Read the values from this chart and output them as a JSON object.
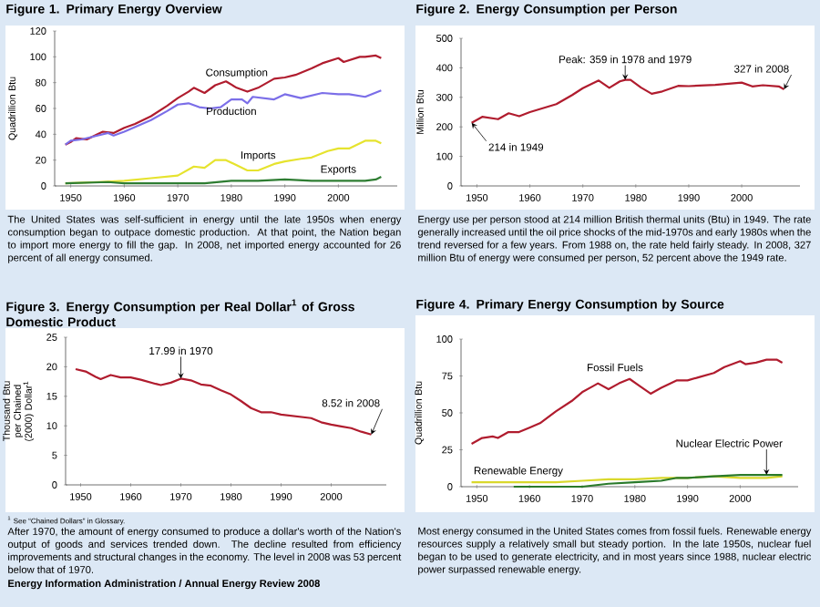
{
  "chart_data": [
    {
      "type": "line",
      "title": "Figure 1.  Primary Energy Overview",
      "ylabel": "Quadrillion Btu",
      "xlim": [
        1947,
        2011
      ],
      "xticks": [
        1950,
        1960,
        1970,
        1980,
        1990,
        2000
      ],
      "ylim": [
        0,
        120
      ],
      "yticks": [
        0,
        20,
        40,
        60,
        80,
        100,
        120
      ],
      "series": [
        {
          "name": "Consumption",
          "color": "#b01c2e",
          "x": [
            1949,
            1950,
            1951,
            1953,
            1955,
            1956,
            1958,
            1960,
            1962,
            1965,
            1968,
            1970,
            1972,
            1973,
            1975,
            1977,
            1979,
            1981,
            1983,
            1985,
            1988,
            1990,
            1992,
            1995,
            1997,
            2000,
            2001,
            2004,
            2005,
            2007,
            2008
          ],
          "values": [
            32,
            34,
            37,
            36,
            40,
            42,
            41,
            45,
            48,
            54,
            62,
            68,
            73,
            76,
            72,
            78,
            81,
            76,
            73,
            76,
            83,
            84,
            86,
            91,
            95,
            99,
            96,
            100,
            100,
            101,
            99
          ]
        },
        {
          "name": "Production",
          "color": "#7b6ee8",
          "x": [
            1949,
            1950,
            1952,
            1955,
            1957,
            1958,
            1960,
            1965,
            1968,
            1970,
            1972,
            1974,
            1976,
            1978,
            1980,
            1982,
            1983,
            1984,
            1988,
            1990,
            1993,
            1997,
            2000,
            2002,
            2005,
            2008
          ],
          "values": [
            32,
            35,
            36,
            39,
            41,
            39,
            42,
            51,
            58,
            63,
            64,
            61,
            60,
            61,
            67,
            67,
            64,
            69,
            67,
            71,
            68,
            72,
            71,
            71,
            69,
            74
          ]
        },
        {
          "name": "Imports",
          "color": "#e6e32e",
          "x": [
            1949,
            1955,
            1960,
            1965,
            1970,
            1973,
            1975,
            1977,
            1979,
            1981,
            1983,
            1985,
            1988,
            1990,
            1993,
            1995,
            1998,
            2000,
            2002,
            2005,
            2007,
            2008
          ],
          "values": [
            2,
            3,
            4,
            6,
            8,
            15,
            14,
            20,
            20,
            16,
            12,
            12,
            17,
            19,
            21,
            22,
            27,
            29,
            29,
            35,
            35,
            33
          ]
        },
        {
          "name": "Exports",
          "color": "#2e7d32",
          "x": [
            1949,
            1957,
            1960,
            1965,
            1970,
            1975,
            1980,
            1981,
            1985,
            1990,
            1995,
            2000,
            2005,
            2007,
            2008
          ],
          "values": [
            2,
            3,
            2,
            2,
            2,
            2,
            4,
            4,
            4,
            5,
            4,
            4,
            4,
            5,
            7
          ]
        }
      ],
      "annotations": [
        "The United States was self-sufficient in energy until the late 1950s when energy consumption began to outpace domestic production.  At that point, the Nation began to import more energy to fill the gap. In 2008, net imported energy accounted for 26 percent of all energy consumed."
      ]
    },
    {
      "type": "line",
      "title": "Figure 2.  Energy Consumption per Person",
      "ylabel": "Million Btu",
      "xlim": [
        1947,
        2011
      ],
      "xticks": [
        1950,
        1960,
        1970,
        1980,
        1990,
        2000
      ],
      "ylim": [
        0,
        500
      ],
      "yticks": [
        0,
        100,
        200,
        300,
        400,
        500
      ],
      "series": [
        {
          "color": "#b01c2e",
          "x": [
            1949,
            1951,
            1954,
            1956,
            1958,
            1960,
            1965,
            1968,
            1970,
            1973,
            1975,
            1977,
            1978,
            1979,
            1981,
            1983,
            1985,
            1988,
            1990,
            1995,
            2000,
            2002,
            2004,
            2007,
            2008
          ],
          "values": [
            214,
            234,
            226,
            246,
            236,
            250,
            277,
            308,
            331,
            357,
            332,
            354,
            359,
            359,
            333,
            312,
            320,
            339,
            338,
            342,
            350,
            337,
            341,
            337,
            327
          ]
        }
      ],
      "annotations": [
        {
          "text": "214 in 1949",
          "x": 1949,
          "y": 214
        },
        {
          "text": "Peak:  359 in 1978 and 1979",
          "x": 1978,
          "y": 359
        },
        {
          "text": "327 in 2008",
          "x": 2008,
          "y": 327
        },
        "Energy use per person stood at 214 million British thermal units (Btu) in 1949. The rate generally increased until the oil price shocks of the mid-1970s and early 1980s when the trend reversed for a few years. From 1988 on, the rate held fairly steady.  In 2008, 327 million Btu of energy were consumed per person, 52 percent above the 1949 rate."
      ]
    },
    {
      "type": "line",
      "title": "Figure 3.  Energy Consumption per Real Dollar$^{1}$ of Gross Domestic Product",
      "ylabel": "Thousand Btu per Chained (2000) Dollar$^{1}$",
      "xlim": [
        1947,
        2011
      ],
      "xticks": [
        1950,
        1960,
        1970,
        1980,
        1990,
        2000
      ],
      "ylim": [
        0,
        25
      ],
      "yticks": [
        0,
        5,
        10,
        15,
        20,
        25
      ],
      "series": [
        {
          "color": "#b01c2e",
          "x": [
            1949,
            1951,
            1953,
            1954,
            1956,
            1958,
            1960,
            1962,
            1965,
            1966,
            1968,
            1970,
            1972,
            1974,
            1976,
            1978,
            1980,
            1982,
            1984,
            1986,
            1988,
            1990,
            1993,
            1996,
            1998,
            2000,
            2002,
            2004,
            2006,
            2008
          ],
          "values": [
            19.6,
            19.2,
            18.3,
            17.9,
            18.6,
            18.2,
            18.2,
            17.8,
            17.1,
            16.9,
            17.3,
            17.99,
            17.7,
            17.0,
            16.8,
            16.0,
            15.3,
            14.2,
            13.0,
            12.3,
            12.3,
            11.9,
            11.6,
            11.3,
            10.6,
            10.2,
            9.9,
            9.6,
            9.0,
            8.52
          ]
        }
      ],
      "annotations": [
        {
          "text": "17.99 in 1970",
          "x": 1970,
          "y": 17.99
        },
        {
          "text": "8.52 in 2008",
          "x": 2008,
          "y": 8.52
        },
        "$^{1}$ See “Chained Dollars” in Glossary.",
        "After 1970, the amount of energy consumed to produce a dollar's worth of the Nation's output of goods and services trended down. The decline resulted from efficiency improvements and structural changes in the economy.  The level in 2008 was 53 percent below that of 1970.",
        "Energy Information Administration / Annual Energy Review 2008"
      ]
    },
    {
      "type": "line",
      "title": "Figure 4.  Primary Energy Consumption by Source",
      "ylabel": "Quadrillion Btu",
      "xlim": [
        1947,
        2011
      ],
      "xticks": [
        1950,
        1960,
        1970,
        1980,
        1990,
        2000
      ],
      "ylim": [
        0,
        100
      ],
      "yticks": [
        0,
        25,
        50,
        75,
        100
      ],
      "series": [
        {
          "name": "Fossil Fuels",
          "color": "#b01c2e",
          "x": [
            1949,
            1951,
            1953,
            1954,
            1956,
            1958,
            1960,
            1962,
            1965,
            1968,
            1970,
            1972,
            1973,
            1975,
            1977,
            1979,
            1981,
            1983,
            1985,
            1988,
            1990,
            1992,
            1995,
            1997,
            2000,
            2001,
            2003,
            2005,
            2007,
            2008
          ],
          "values": [
            29,
            33,
            34,
            33,
            37,
            37,
            40,
            43,
            51,
            58,
            64,
            68,
            70,
            66,
            70,
            73,
            68,
            63,
            67,
            72,
            72,
            74,
            77,
            81,
            85,
            83,
            84,
            86,
            86,
            84
          ]
        },
        {
          "name": "Renewable Energy",
          "color": "#d9d82c",
          "x": [
            1949,
            1955,
            1960,
            1965,
            1970,
            1975,
            1980,
            1985,
            1990,
            1995,
            2000,
            2005,
            2008
          ],
          "values": [
            3,
            3,
            3,
            3,
            4,
            5,
            5,
            6,
            6,
            7,
            6,
            6,
            7
          ]
        },
        {
          "name": "Nuclear Electric Power",
          "color": "#2a7a2a",
          "x": [
            1957,
            1960,
            1965,
            1970,
            1975,
            1980,
            1985,
            1988,
            1990,
            1995,
            2000,
            2005,
            2008
          ],
          "values": [
            0,
            0,
            0,
            0,
            2,
            3,
            4,
            6,
            6,
            7,
            8,
            8,
            8
          ]
        }
      ],
      "annotations": [
        "Most energy consumed in the United States comes from fossil fuels. Renewable energy resources supply a relatively small but steady portion. In the late 1950s, nuclear fuel began to be used to generate electricity, and in most years since 1988, nuclear electric power surpassed renewable energy."
      ]
    }
  ]
}
